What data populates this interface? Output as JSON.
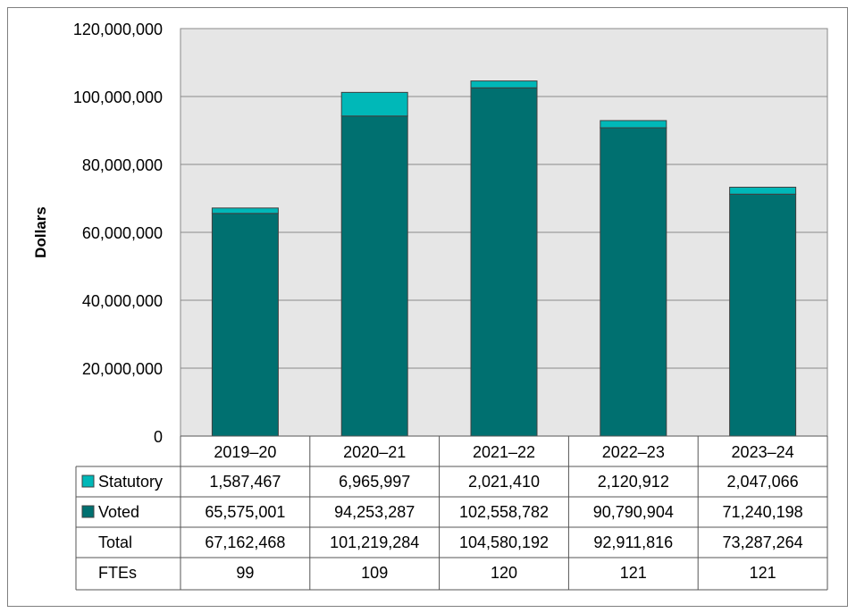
{
  "chart_data": {
    "type": "bar",
    "stacked": true,
    "title": "",
    "xlabel": "",
    "ylabel": "Dollars",
    "ylim": [
      0,
      120000000
    ],
    "yticks": [
      0,
      20000000,
      40000000,
      60000000,
      80000000,
      100000000,
      120000000
    ],
    "ytick_labels": [
      "0",
      "20,000,000",
      "40,000,000",
      "60,000,000",
      "80,000,000",
      "100,000,000",
      "120,000,000"
    ],
    "grid": true,
    "categories": [
      "2019–20",
      "2020–21",
      "2021–22",
      "2022–23",
      "2023–24"
    ],
    "series": [
      {
        "name": "Voted",
        "color": "#007070",
        "values": [
          65575001,
          94253287,
          102558782,
          90790904,
          71240198
        ],
        "labels": [
          "65,575,001",
          "94,253,287",
          "102,558,782",
          "90,790,904",
          "71,240,198"
        ]
      },
      {
        "name": "Statutory",
        "color": "#00B8B8",
        "values": [
          1587467,
          6965997,
          2021410,
          2120912,
          2047066
        ],
        "labels": [
          "1,587,467",
          "6,965,997",
          "2,021,410",
          "2,120,912",
          "2,047,066"
        ]
      }
    ],
    "table_rows": [
      {
        "name": "Total",
        "labels": [
          "67,162,468",
          "101,219,284",
          "104,580,192",
          "92,911,816",
          "73,287,264"
        ]
      },
      {
        "name": "FTEs",
        "labels": [
          "99",
          "109",
          "120",
          "121",
          "121"
        ]
      }
    ],
    "legend_placement": "data-table"
  }
}
